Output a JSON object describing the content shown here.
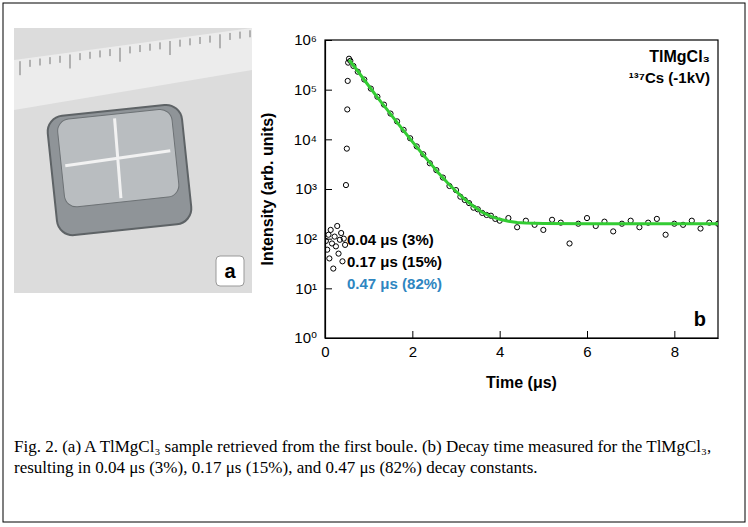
{
  "chart_data": {
    "type": "scatter",
    "title": "TlMgCl₃",
    "subtitle": "¹³⁷Cs (-1kV)",
    "x_label": "Time (μs)",
    "y_label": "Intensity (arb. units)",
    "log": "y",
    "grid": false,
    "xlim": [
      0,
      9
    ],
    "xticks": [
      0,
      2,
      4,
      6,
      8
    ],
    "ylim": [
      1,
      1000000
    ],
    "yticks": [
      {
        "value": 1,
        "label": "10⁰"
      },
      {
        "value": 10,
        "label": "10¹"
      },
      {
        "value": 100,
        "label": "10²"
      },
      {
        "value": 1000,
        "label": "10³"
      },
      {
        "value": 10000,
        "label": "10⁴"
      },
      {
        "value": 100000,
        "label": "10⁵"
      },
      {
        "value": 1000000,
        "label": "10⁶"
      }
    ],
    "series": [
      {
        "type": "scatter",
        "color": "#000000",
        "marker": "circle",
        "x": [
          0.02,
          0.05,
          0.08,
          0.1,
          0.13,
          0.16,
          0.19,
          0.22,
          0.25,
          0.28,
          0.31,
          0.34,
          0.37,
          0.4,
          0.43,
          0.46,
          0.48,
          0.5,
          0.51,
          0.52,
          0.53,
          0.55,
          0.58,
          0.65,
          0.75,
          0.9,
          1.05,
          1.2,
          1.35,
          1.5,
          1.65,
          1.8,
          1.95,
          2.1,
          2.25,
          2.4,
          2.55,
          2.7,
          2.85,
          3.0,
          3.1,
          3.2,
          3.3,
          3.4,
          3.5,
          3.6,
          3.7,
          3.8,
          3.9,
          4.0,
          4.2,
          4.4,
          4.6,
          4.8,
          5.0,
          5.2,
          5.4,
          5.6,
          5.8,
          6.0,
          6.2,
          6.4,
          6.6,
          6.8,
          7.0,
          7.2,
          7.4,
          7.6,
          7.8,
          8.0,
          8.2,
          8.4,
          8.6,
          8.8,
          9.0
        ],
        "values": [
          90,
          60,
          120,
          40,
          150,
          80,
          25,
          110,
          70,
          180,
          50,
          95,
          130,
          35,
          100,
          75,
          1200,
          6500,
          40000,
          150000,
          350000,
          420000,
          380000,
          300000,
          230000,
          160000,
          105000,
          72000,
          50000,
          33000,
          23000,
          15500,
          10500,
          7200,
          5000,
          3300,
          2400,
          1700,
          1150,
          950,
          700,
          600,
          520,
          420,
          390,
          330,
          300,
          290,
          250,
          230,
          260,
          170,
          230,
          190,
          150,
          240,
          210,
          80,
          200,
          260,
          180,
          220,
          140,
          200,
          230,
          170,
          210,
          250,
          120,
          200,
          190,
          230,
          160,
          210,
          200
        ]
      },
      {
        "type": "line",
        "color": "#33cc33",
        "line_style": "solid",
        "x": [
          0.55,
          0.7,
          0.85,
          1.0,
          1.2,
          1.4,
          1.6,
          1.8,
          2.0,
          2.2,
          2.4,
          2.6,
          2.8,
          3.0,
          3.2,
          3.4,
          3.6,
          3.8,
          4.0,
          4.2,
          4.4,
          4.6,
          5.0,
          6.0,
          7.0,
          8.0,
          9.0
        ],
        "values": [
          400000,
          270000,
          180000,
          120000,
          70000,
          42000,
          25000,
          15000,
          9000,
          5500,
          3400,
          2100,
          1350,
          900,
          620,
          450,
          340,
          280,
          245,
          225,
          212,
          206,
          202,
          200,
          200,
          200,
          200
        ]
      }
    ],
    "annotations": [
      {
        "text": "0.04 μs (3%)",
        "color": "#000000"
      },
      {
        "text": "0.17 μs (15%)",
        "color": "#000000"
      },
      {
        "text": "0.47 μs (82%)",
        "color": "#2e86c1"
      }
    ],
    "panel_label": "b"
  },
  "photo": {
    "panel_label": "a"
  },
  "caption": "Fig. 2. (a) A TlMgCl₃ sample retrieved from the first boule. (b) Decay time measured for the TlMgCl₃, resulting in 0.04 μs (3%), 0.17 μs (15%), and 0.47 μs (82%) decay constants."
}
